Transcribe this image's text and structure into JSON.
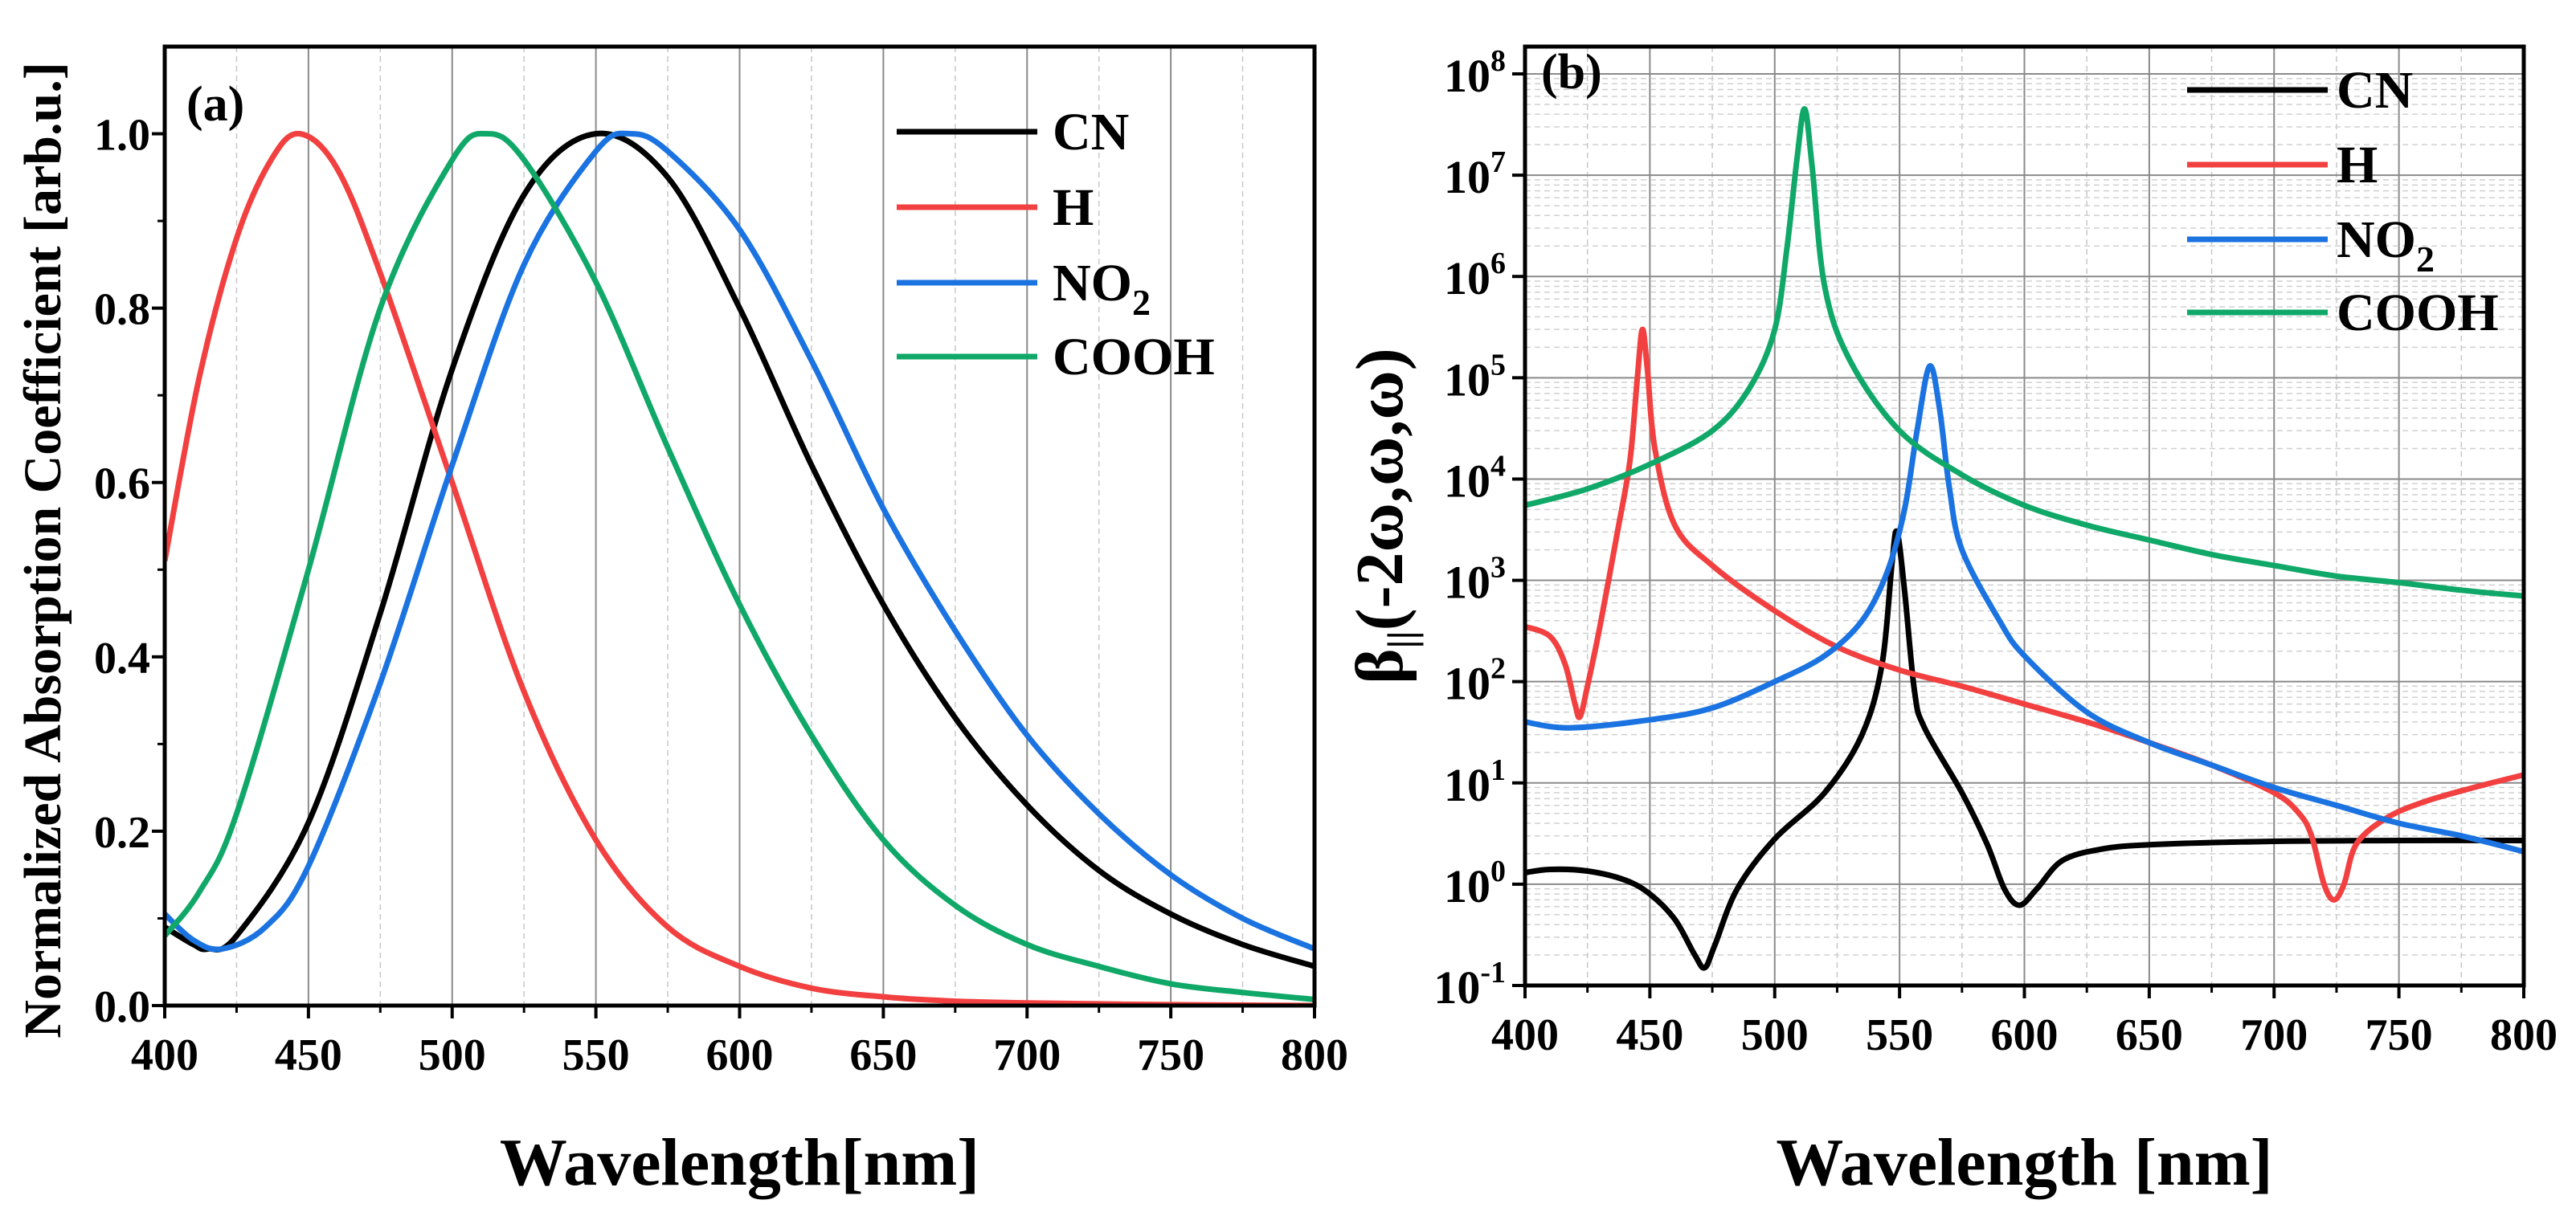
{
  "chart_data": [
    {
      "type": "line",
      "panel_label": "(a)",
      "xlabel": "Wavelength[nm]",
      "ylabel": "Normalized Absorption Coefficient [arb.u.]",
      "xlim": [
        400,
        800
      ],
      "ylim": [
        0,
        1.1
      ],
      "yscale": "linear",
      "xticks": [
        400,
        450,
        500,
        550,
        600,
        650,
        700,
        750,
        800
      ],
      "yticks": [
        0.0,
        0.2,
        0.4,
        0.6,
        0.8,
        1.0
      ],
      "ytick_labels": [
        "0.0",
        "0.2",
        "0.4",
        "0.6",
        "0.8",
        "1.0"
      ],
      "grid": "vertical lines at x ticks (solid) and midpoints (dashed)",
      "legend_position": "top-right",
      "series": [
        {
          "name": "CN",
          "color": "#000000",
          "x": [
            400,
            410,
            415,
            425,
            450,
            475,
            500,
            525,
            550,
            575,
            600,
            625,
            650,
            675,
            700,
            725,
            750,
            775,
            800
          ],
          "y": [
            0.09,
            0.07,
            0.065,
            0.08,
            0.21,
            0.45,
            0.73,
            0.93,
            1.0,
            0.95,
            0.8,
            0.62,
            0.46,
            0.33,
            0.23,
            0.155,
            0.105,
            0.07,
            0.045
          ]
        },
        {
          "name": "H",
          "color": "#f24040",
          "x": [
            400,
            412,
            425,
            437,
            447,
            460,
            475,
            500,
            525,
            550,
            575,
            600,
            625,
            650,
            675,
            700,
            750,
            800
          ],
          "y": [
            0.51,
            0.72,
            0.88,
            0.97,
            1.0,
            0.96,
            0.84,
            0.6,
            0.36,
            0.19,
            0.09,
            0.045,
            0.02,
            0.01,
            0.005,
            0.003,
            0.001,
            0.0
          ]
        },
        {
          "name": "NO2",
          "color": "#1a73e0",
          "x": [
            400,
            410,
            420,
            435,
            450,
            475,
            500,
            525,
            550,
            562,
            575,
            600,
            625,
            650,
            675,
            700,
            725,
            750,
            775,
            800
          ],
          "y": [
            0.105,
            0.075,
            0.065,
            0.09,
            0.16,
            0.37,
            0.62,
            0.85,
            0.98,
            1.0,
            0.98,
            0.89,
            0.74,
            0.57,
            0.43,
            0.31,
            0.22,
            0.15,
            0.1,
            0.065
          ]
        },
        {
          "name": "COOH",
          "color": "#10a868",
          "x": [
            400,
            412,
            425,
            450,
            475,
            500,
            512,
            525,
            550,
            575,
            600,
            625,
            650,
            675,
            700,
            725,
            750,
            775,
            800
          ],
          "y": [
            0.08,
            0.13,
            0.22,
            0.5,
            0.8,
            0.97,
            1.0,
            0.97,
            0.83,
            0.64,
            0.46,
            0.31,
            0.19,
            0.115,
            0.07,
            0.045,
            0.025,
            0.015,
            0.007
          ]
        }
      ]
    },
    {
      "type": "line",
      "panel_label": "(b)",
      "xlabel": "Wavelength [nm]",
      "ylabel": "β||(-2ω,ω,ω)",
      "ylabel_main": "β",
      "ylabel_sub": "||",
      "ylabel_rest": "(-2ω,ω,ω)",
      "xlim": [
        400,
        800
      ],
      "ylim": [
        0.1,
        200000000
      ],
      "yscale": "log",
      "xticks": [
        400,
        450,
        500,
        550,
        600,
        650,
        700,
        750,
        800
      ],
      "ytick_exponents": [
        "-1",
        "0",
        "1",
        "2",
        "3",
        "4",
        "5",
        "6",
        "7",
        "8"
      ],
      "ytick_base": "10",
      "grid": "major solid, minor dashed",
      "legend_position": "top-right",
      "series": [
        {
          "name": "CN",
          "color": "#000000",
          "x": [
            400,
            410,
            425,
            440,
            450,
            460,
            468,
            472,
            476,
            485,
            500,
            520,
            535,
            543,
            547,
            549,
            552,
            556,
            560,
            575,
            585,
            592,
            598,
            605,
            615,
            630,
            650,
            700,
            750,
            800
          ],
          "y": [
            1.3,
            1.4,
            1.35,
            1.1,
            0.8,
            0.45,
            0.2,
            0.15,
            0.25,
            0.9,
            2.8,
            8,
            30,
            150,
            1500,
            3000,
            800,
            80,
            35,
            8,
            2.5,
            0.9,
            0.62,
            0.9,
            1.7,
            2.2,
            2.45,
            2.65,
            2.7,
            2.7
          ]
        },
        {
          "name": "H",
          "color": "#f24040",
          "x": [
            400,
            410,
            416,
            420,
            422,
            425,
            430,
            437,
            442,
            445,
            447,
            449,
            452,
            460,
            475,
            500,
            525,
            550,
            575,
            600,
            625,
            650,
            675,
            700,
            710,
            715,
            720,
            724,
            728,
            733,
            745,
            760,
            780,
            800
          ],
          "y": [
            350,
            280,
            150,
            60,
            45,
            90,
            350,
            3000,
            15000,
            100000,
            300000,
            120000,
            20000,
            3500,
            1400,
            500,
            220,
            130,
            90,
            60,
            40,
            25,
            15,
            8,
            5,
            3,
            1,
            0.7,
            1,
            2.5,
            4.5,
            6.5,
            9,
            12
          ]
        },
        {
          "name": "NO2",
          "color": "#1a73e0",
          "x": [
            400,
            418,
            450,
            475,
            500,
            520,
            535,
            545,
            552,
            557,
            562,
            566,
            570,
            575,
            590,
            600,
            625,
            650,
            675,
            700,
            725,
            750,
            775,
            800
          ],
          "y": [
            40,
            35,
            42,
            55,
            100,
            180,
            400,
            1200,
            5000,
            30000,
            130000,
            50000,
            8000,
            2000,
            400,
            180,
            50,
            25,
            15,
            9,
            6,
            4,
            3,
            2.1
          ]
        },
        {
          "name": "COOH",
          "color": "#10a868",
          "x": [
            400,
            425,
            450,
            475,
            490,
            500,
            505,
            509,
            512,
            515,
            520,
            530,
            550,
            575,
            600,
            625,
            650,
            675,
            700,
            725,
            750,
            775,
            800
          ],
          "y": [
            5500,
            8000,
            14000,
            30000,
            80000,
            300000,
            2000000,
            15000000,
            45000000,
            12000000,
            800000,
            150000,
            30000,
            11000,
            5500,
            3500,
            2500,
            1800,
            1400,
            1100,
            950,
            800,
            700
          ]
        }
      ]
    }
  ]
}
